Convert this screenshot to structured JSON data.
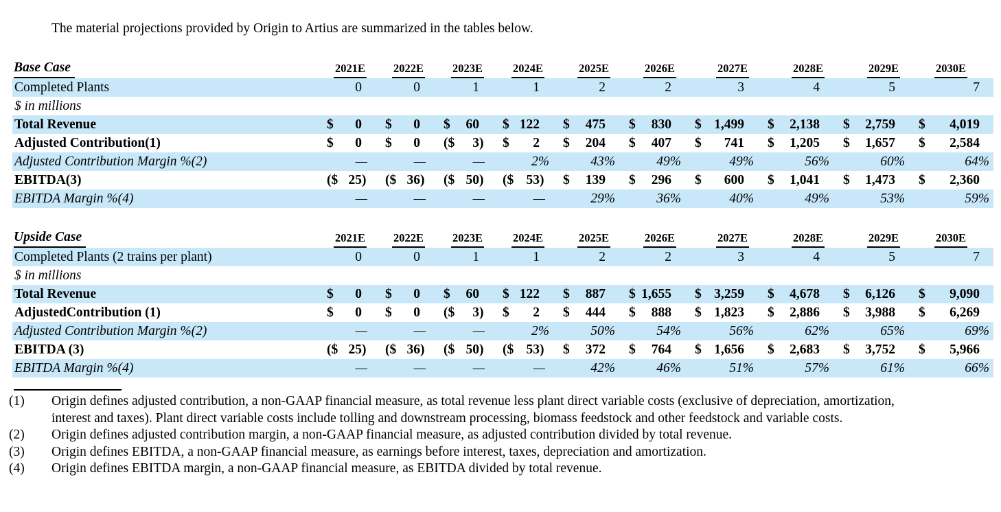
{
  "intro": "The material projections provided by Origin to Artius are summarized in the tables below.",
  "colors": {
    "row_highlight": "#C8E8FA",
    "text": "#000000"
  },
  "tables": [
    {
      "case_label": "Base Case",
      "years": [
        "2021E",
        "2022E",
        "2023E",
        "2024E",
        "2025E",
        "2026E",
        "2027E",
        "2028E",
        "2029E",
        "2030E"
      ],
      "rows": [
        {
          "label": "Completed Plants",
          "type": "plain",
          "emphasis": "normal",
          "highlight": true,
          "cells": [
            "0",
            "0",
            "1",
            "1",
            "2",
            "2",
            "3",
            "4",
            "5",
            "7"
          ]
        },
        {
          "label": "$ in millions",
          "type": "note",
          "emphasis": "italic",
          "highlight": false,
          "cells": []
        },
        {
          "label": "Total Revenue",
          "type": "money",
          "emphasis": "bold",
          "highlight": true,
          "cells": [
            "0",
            "0",
            "60",
            "122",
            "475",
            "830",
            "1,499",
            "2,138",
            "2,759",
            "4,019"
          ]
        },
        {
          "label": "Adjusted Contribution(1)",
          "type": "money",
          "emphasis": "bold",
          "highlight": false,
          "cells": [
            "0",
            "0",
            "(3)",
            "2",
            "204",
            "407",
            "741",
            "1,205",
            "1,657",
            "2,584"
          ]
        },
        {
          "label": "Adjusted Contribution Margin %(2)",
          "type": "percent",
          "emphasis": "italic",
          "highlight": true,
          "cells": [
            "—",
            "—",
            "—",
            "2%",
            "43%",
            "49%",
            "49%",
            "56%",
            "60%",
            "64%"
          ]
        },
        {
          "label": "EBITDA(3)",
          "type": "money",
          "emphasis": "bold",
          "highlight": false,
          "cells": [
            "(25)",
            "(36)",
            "(50)",
            "(53)",
            "139",
            "296",
            "600",
            "1,041",
            "1,473",
            "2,360"
          ]
        },
        {
          "label": "EBITDA Margin %(4)",
          "type": "percent",
          "emphasis": "italic",
          "highlight": true,
          "cells": [
            "—",
            "—",
            "—",
            "—",
            "29%",
            "36%",
            "40%",
            "49%",
            "53%",
            "59%"
          ]
        }
      ]
    },
    {
      "case_label": "Upside Case",
      "years": [
        "2021E",
        "2022E",
        "2023E",
        "2024E",
        "2025E",
        "2026E",
        "2027E",
        "2028E",
        "2029E",
        "2030E"
      ],
      "rows": [
        {
          "label": "Completed Plants (2 trains per plant)",
          "type": "plain",
          "emphasis": "normal",
          "highlight": true,
          "cells": [
            "0",
            "0",
            "1",
            "1",
            "2",
            "2",
            "3",
            "4",
            "5",
            "7"
          ]
        },
        {
          "label": "$ in millions",
          "type": "note",
          "emphasis": "italic",
          "highlight": false,
          "cells": []
        },
        {
          "label": "Total Revenue",
          "type": "money",
          "emphasis": "bold",
          "highlight": true,
          "cells": [
            "0",
            "0",
            "60",
            "122",
            "887",
            "1,655",
            "3,259",
            "4,678",
            "6,126",
            "9,090"
          ]
        },
        {
          "label": "AdjustedContribution (1)",
          "type": "money",
          "emphasis": "bold",
          "highlight": false,
          "cells": [
            "0",
            "0",
            "(3)",
            "2",
            "444",
            "888",
            "1,823",
            "2,886",
            "3,988",
            "6,269"
          ]
        },
        {
          "label": "Adjusted Contribution Margin %(2)",
          "type": "percent",
          "emphasis": "italic",
          "highlight": true,
          "cells": [
            "—",
            "—",
            "—",
            "2%",
            "50%",
            "54%",
            "56%",
            "62%",
            "65%",
            "69%"
          ]
        },
        {
          "label": "EBITDA (3)",
          "type": "money",
          "emphasis": "bold",
          "highlight": false,
          "cells": [
            "(25)",
            "(36)",
            "(50)",
            "(53)",
            "372",
            "764",
            "1,656",
            "2,683",
            "3,752",
            "5,966"
          ]
        },
        {
          "label": "EBITDA Margin %(4)",
          "type": "percent",
          "emphasis": "italic",
          "highlight": true,
          "cells": [
            "—",
            "—",
            "—",
            "—",
            "42%",
            "46%",
            "51%",
            "57%",
            "61%",
            "66%"
          ]
        }
      ]
    }
  ],
  "footnotes": [
    {
      "num": "(1)",
      "text": "Origin defines adjusted contribution, a non-GAAP financial measure, as total revenue less plant direct variable costs (exclusive of depreciation, amortization, interest and taxes). Plant direct variable costs include tolling and downstream processing, biomass feedstock and other feedstock and variable costs."
    },
    {
      "num": "(2)",
      "text": "Origin defines adjusted contribution margin, a non-GAAP financial measure, as adjusted contribution divided by total revenue."
    },
    {
      "num": "(3)",
      "text": "Origin defines EBITDA, a non-GAAP financial measure, as earnings before interest, taxes, depreciation and amortization."
    },
    {
      "num": "(4)",
      "text": "Origin defines EBITDA margin, a non-GAAP financial measure, as EBITDA divided by total revenue."
    }
  ]
}
